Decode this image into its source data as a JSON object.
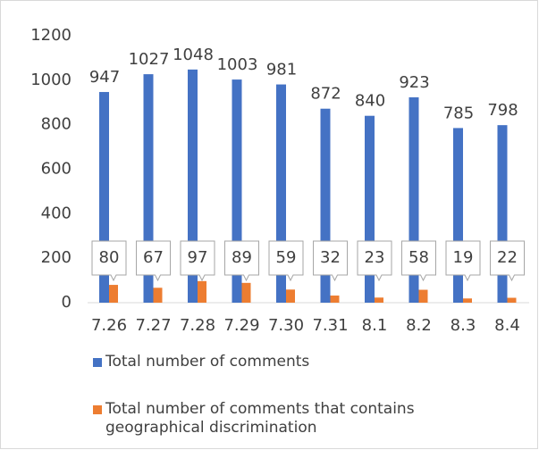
{
  "chart_data": {
    "type": "bar",
    "categories": [
      "7.26",
      "7.27",
      "7.28",
      "7.29",
      "7.30",
      "7.31",
      "8.1",
      "8.2",
      "8.3",
      "8.4"
    ],
    "series": [
      {
        "name": "Total number of comments",
        "color": "#4472c4",
        "values": [
          947,
          1027,
          1048,
          1003,
          981,
          872,
          840,
          923,
          785,
          798
        ]
      },
      {
        "name": "Total number of comments that contains geographical discrimination",
        "color": "#ed7d31",
        "values": [
          80,
          67,
          97,
          89,
          59,
          32,
          23,
          58,
          19,
          22
        ]
      }
    ],
    "ylim": [
      0,
      1200
    ],
    "yticks": [
      0,
      200,
      400,
      600,
      800,
      1000,
      1200
    ],
    "grid": false,
    "legend": "bottom"
  }
}
